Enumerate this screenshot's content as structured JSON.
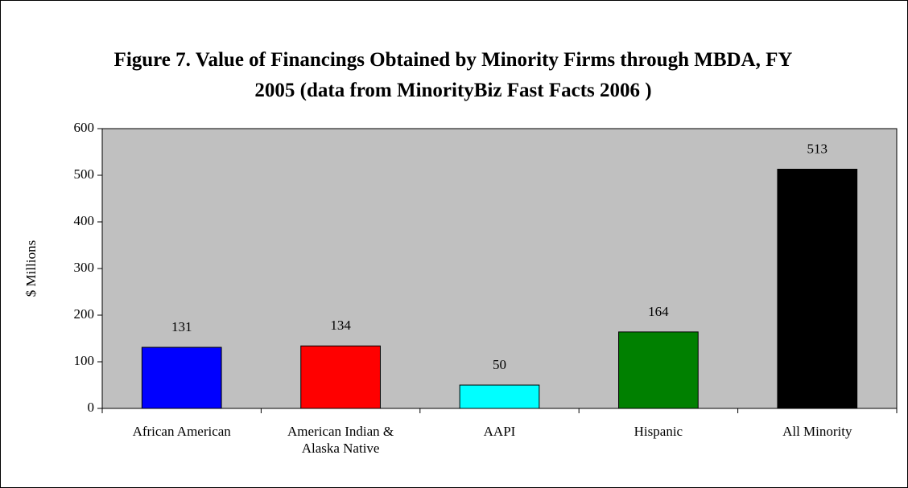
{
  "chart_data": {
    "type": "bar",
    "title": "Figure 7. Value of Financings Obtained by Minority Firms through MBDA,  FY 2005 (data from MinorityBiz Fast Facts 2006 )",
    "ylabel": "$ Millions",
    "categories": [
      "African American",
      "American Indian & Alaska Native",
      "AAPI",
      "Hispanic",
      "All Minority"
    ],
    "values": [
      131,
      134,
      50,
      164,
      513
    ],
    "colors": [
      "#0000ff",
      "#ff0000",
      "#00ffff",
      "#008000",
      "#000000"
    ],
    "ylim": [
      0,
      600
    ],
    "yticks": [
      0,
      100,
      200,
      300,
      400,
      500,
      600
    ],
    "plot_background": "#c0c0c0"
  }
}
